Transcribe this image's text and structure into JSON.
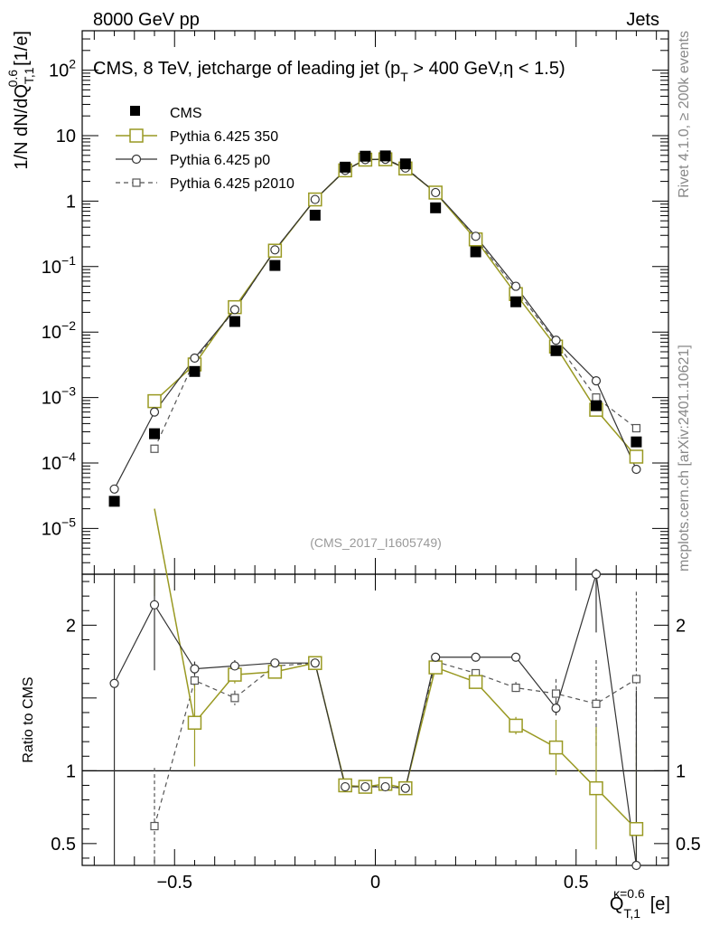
{
  "header": {
    "left": "8000 GeV pp",
    "right": "Jets"
  },
  "side": {
    "rivet": "Rivet 4.1.0, ≥ 200k events",
    "mcplots": "mcplots.cern.ch [arXiv:2401.10621]"
  },
  "chart_data": {
    "type": "scatter",
    "title": "CMS, 8 TeV, jetcharge of leading jet (p_T > 400 GeV, η < 1.5)",
    "title_parts": {
      "a": "CMS, 8 TeV, jetcharge of leading jet (p",
      "sub": "T",
      "b": " > 400 GeV,η < 1.5)"
    },
    "analysis_id": "(CMS_2017_I1605749)",
    "xlabel": {
      "main": "Q",
      "sub": "T,1",
      "sup": "κ=0.6",
      "unit": "[e]"
    },
    "ylabel": {
      "main": "1/N dN/dQ",
      "sub": "T,1",
      "sup": "0.6",
      "unit": "[1/e]"
    },
    "ratio_ylabel": "Ratio to CMS",
    "xlim": [
      -0.73,
      0.73
    ],
    "ylim": [
      2e-06,
      400
    ],
    "yscale": "log",
    "ratio_ylim": [
      0.35,
      2.35
    ],
    "x_ticks": [
      -0.5,
      0,
      0.5
    ],
    "x_tick_labels": [
      "−0.5",
      "0",
      "0.5"
    ],
    "y_tick_labels": [
      {
        "v": 1e-05,
        "base": "10",
        "exp": "−5"
      },
      {
        "v": 0.0001,
        "base": "10",
        "exp": "−4"
      },
      {
        "v": 0.001,
        "base": "10",
        "exp": "−3"
      },
      {
        "v": 0.01,
        "base": "10",
        "exp": "−2"
      },
      {
        "v": 0.1,
        "base": "10",
        "exp": "−1"
      },
      {
        "v": 1,
        "base": "1",
        "exp": ""
      },
      {
        "v": 10,
        "base": "10",
        "exp": ""
      },
      {
        "v": 100,
        "base": "10",
        "exp": "2"
      }
    ],
    "ratio_ticks": [
      0.5,
      1,
      2
    ],
    "ratio_tick_labels": [
      "0.5",
      "1",
      "2"
    ],
    "x": [
      -0.65,
      -0.55,
      -0.45,
      -0.35,
      -0.25,
      -0.15,
      -0.075,
      -0.025,
      0.025,
      0.075,
      0.15,
      0.25,
      0.35,
      0.45,
      0.55,
      0.65
    ],
    "series": [
      {
        "name": "CMS",
        "color": "#000000",
        "marker": "filled-square",
        "values": [
          2.6e-05,
          0.00028,
          0.0025,
          0.0145,
          0.104,
          0.61,
          3.3,
          4.85,
          4.9,
          3.7,
          0.79,
          0.168,
          0.029,
          0.0052,
          0.00075,
          0.00021
        ]
      },
      {
        "name": "Pythia 6.425 350",
        "color": "#999922",
        "marker": "open-square",
        "line": "solid",
        "values": [
          null,
          0.00088,
          0.0032,
          0.024,
          0.175,
          1.06,
          2.95,
          4.3,
          4.35,
          3.15,
          1.35,
          0.26,
          0.038,
          0.006,
          0.00065,
          0.000125
        ],
        "ratio": [
          null,
          2.8,
          1.33,
          1.66,
          1.68,
          1.74,
          0.9,
          0.89,
          0.91,
          0.88,
          1.71,
          1.61,
          1.31,
          1.16,
          0.88,
          0.6
        ],
        "ratio_err": [
          null,
          0.6,
          0.3,
          0.06,
          0.03,
          0.02,
          0.02,
          0.02,
          0.02,
          0.02,
          0.02,
          0.04,
          0.06,
          0.19,
          0.42,
          0.6
        ]
      },
      {
        "name": "Pythia 6.425 p0",
        "color": "#333333",
        "marker": "open-circle",
        "line": "solid",
        "values": [
          4e-05,
          0.0006,
          0.004,
          0.022,
          0.18,
          1.06,
          2.95,
          4.3,
          4.35,
          3.2,
          1.35,
          0.29,
          0.05,
          0.0075,
          0.0018,
          8e-05
        ],
        "ratio": [
          1.6,
          2.14,
          1.7,
          1.72,
          1.74,
          1.74,
          0.89,
          0.89,
          0.89,
          0.88,
          1.78,
          1.78,
          1.78,
          1.43,
          2.35,
          0.35
        ],
        "ratio_err": [
          1.3,
          0.45,
          0.05,
          0.04,
          0.02,
          0.02,
          0.02,
          0.02,
          0.02,
          0.02,
          0.02,
          0.02,
          0.03,
          0.05,
          0.4,
          1.2
        ]
      },
      {
        "name": "Pythia 6.425 p2010",
        "color": "#555555",
        "marker": "open-square-small",
        "line": "dashed",
        "values": [
          null,
          0.000165,
          0.0037,
          0.022,
          0.18,
          1.05,
          3.0,
          4.3,
          4.4,
          3.25,
          1.35,
          0.27,
          0.045,
          0.007,
          0.001,
          0.00034
        ],
        "ratio": [
          null,
          0.62,
          1.62,
          1.5,
          1.72,
          1.74,
          0.9,
          0.89,
          0.9,
          0.88,
          1.75,
          1.67,
          1.57,
          1.53,
          1.46,
          1.63
        ],
        "ratio_err": [
          null,
          0.4,
          0.07,
          0.05,
          0.02,
          0.02,
          0.02,
          0.02,
          0.02,
          0.02,
          0.02,
          0.02,
          0.04,
          0.1,
          0.3,
          0.6
        ]
      }
    ],
    "legend": [
      "CMS",
      "Pythia 6.425 350",
      "Pythia 6.425 p0",
      "Pythia 6.425 p2010"
    ],
    "legend_position": "top-left"
  }
}
